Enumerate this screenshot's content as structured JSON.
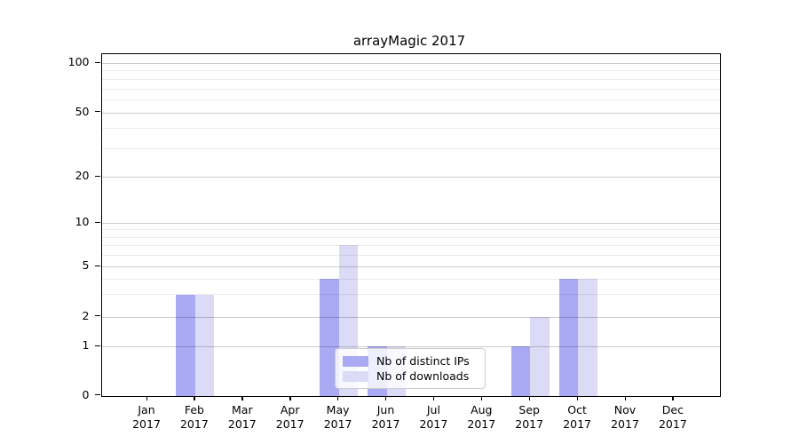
{
  "figure": {
    "background": "#ffffff"
  },
  "chart_data": {
    "type": "bar",
    "title": "arrayMagic 2017",
    "categories": [
      "Jan",
      "Feb",
      "Mar",
      "Apr",
      "May",
      "Jun",
      "Jul",
      "Aug",
      "Sep",
      "Oct",
      "Nov",
      "Dec"
    ],
    "x_sublabel": "2017",
    "series": [
      {
        "name": "Nb of distinct IPs",
        "color": "#a9a9f4",
        "values": [
          0,
          3,
          0,
          0,
          4,
          1,
          0,
          0,
          1,
          4,
          0,
          0
        ]
      },
      {
        "name": "Nb of downloads",
        "color": "#dbdbf7",
        "values": [
          0,
          3,
          0,
          0,
          7,
          1,
          0,
          0,
          2,
          4,
          0,
          0
        ]
      }
    ],
    "xlabel": "",
    "ylabel": "",
    "y_ticks": [
      0,
      1,
      2,
      5,
      10,
      20,
      50,
      100
    ],
    "y_minor_gridlines": [
      3,
      4,
      6,
      7,
      8,
      9,
      30,
      40,
      60,
      70,
      80,
      90
    ],
    "ylim": [
      0,
      110
    ],
    "scale": "log-like above 1 with 0 baseline",
    "grid": "horizontal",
    "legend_position": "lower center"
  }
}
